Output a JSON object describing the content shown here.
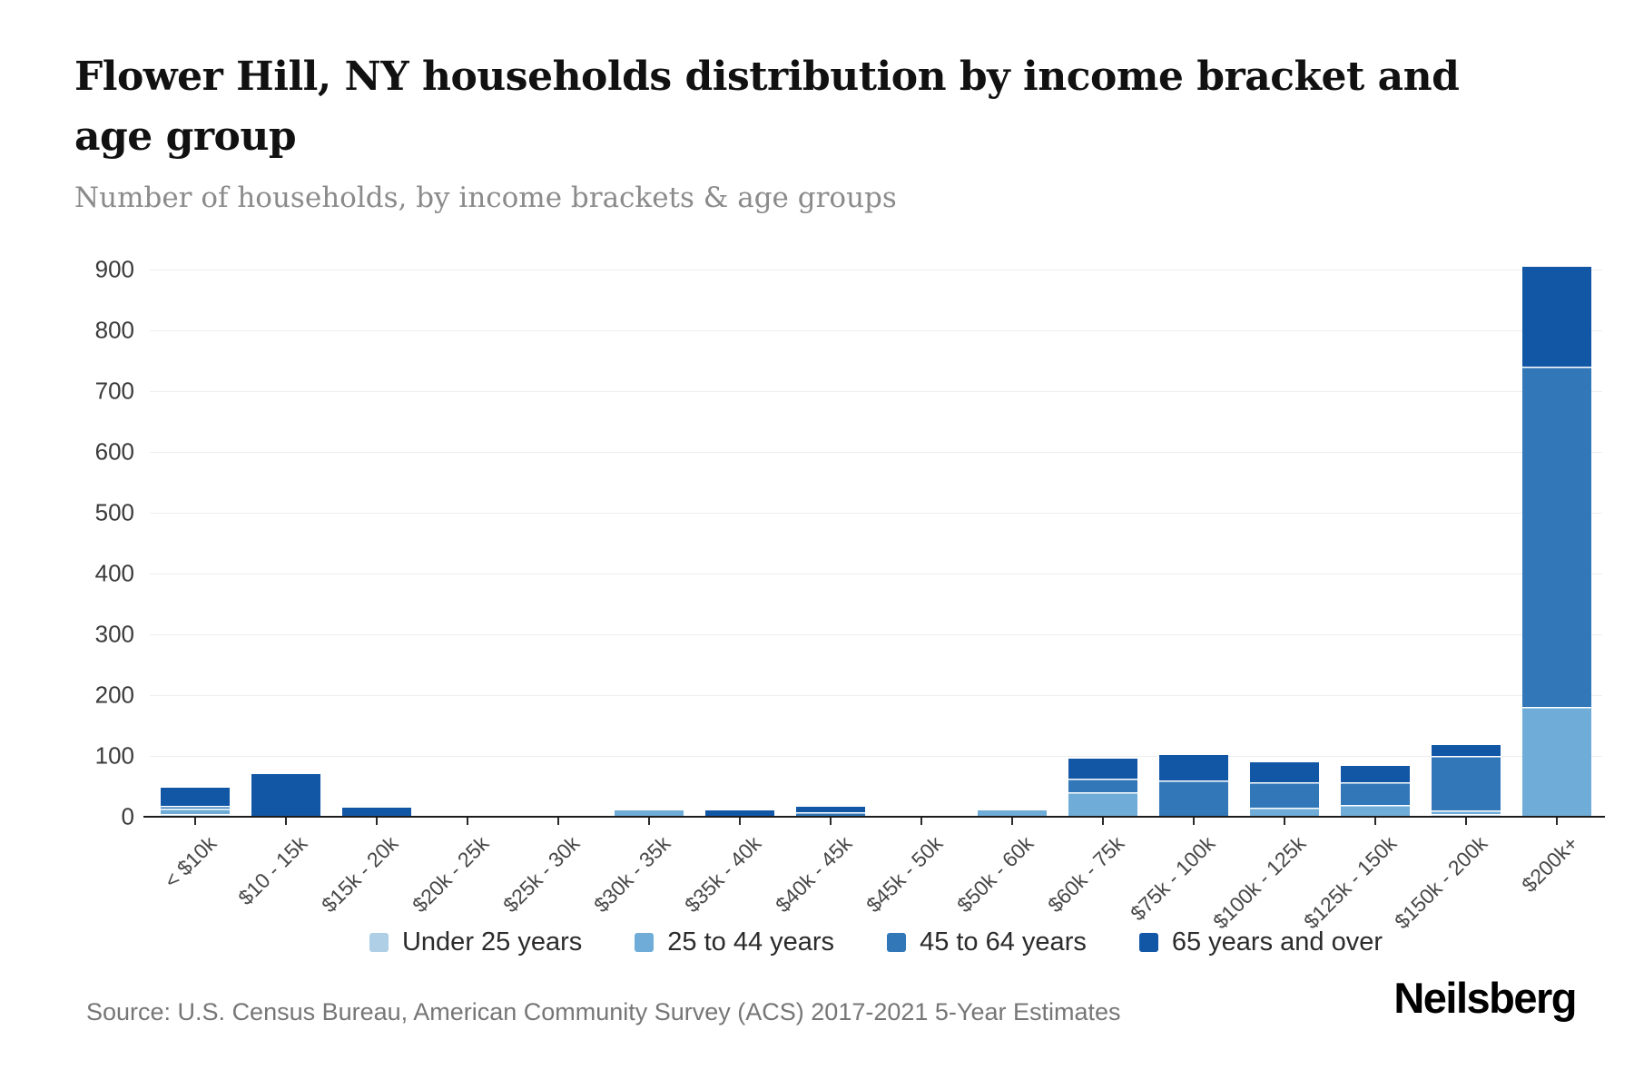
{
  "page": {
    "title": "Flower Hill, NY households distribution by income bracket and age group",
    "subtitle": "Number of households, by income brackets & age groups",
    "source": "Source: U.S. Census Bureau, American Community Survey (ACS) 2017-2021 5-Year Estimates",
    "brand": "Neilsberg"
  },
  "chart_data": {
    "type": "bar",
    "stacked": true,
    "title": "Flower Hill, NY households distribution by income bracket and age group",
    "subtitle": "Number of households, by income brackets & age groups",
    "xlabel": "",
    "ylabel": "Number of households",
    "ylim": [
      0,
      900
    ],
    "ytick_step": 100,
    "grid": "horizontal",
    "legend_position": "bottom",
    "categories": [
      "< $10k",
      "$10 - 15k",
      "$15k - 20k",
      "$20k - 25k",
      "$25k - 30k",
      "$30k - 35k",
      "$35k - 40k",
      "$40k - 45k",
      "$45k - 50k",
      "$50k - 60k",
      "$60k - 75k",
      "$75k - 100k",
      "$100k - 125k",
      "$125k - 150k",
      "$150k - 200k",
      "$200k+"
    ],
    "series": [
      {
        "name": "Under 25 years",
        "color": "#aecfe6",
        "values": [
          4,
          0,
          0,
          0,
          0,
          0,
          0,
          0,
          0,
          0,
          0,
          0,
          0,
          0,
          4,
          0
        ]
      },
      {
        "name": "25 to 44 years",
        "color": "#6fadd8",
        "values": [
          9,
          0,
          0,
          0,
          0,
          10,
          0,
          0,
          0,
          10,
          40,
          0,
          15,
          20,
          6,
          180
        ]
      },
      {
        "name": "45 to 64 years",
        "color": "#3277b8",
        "values": [
          5,
          0,
          0,
          0,
          0,
          0,
          0,
          8,
          0,
          0,
          23,
          60,
          42,
          37,
          90,
          560
        ]
      },
      {
        "name": "65 years and over",
        "color": "#1257a6",
        "values": [
          30,
          70,
          15,
          0,
          0,
          0,
          10,
          8,
          0,
          0,
          32,
          42,
          33,
          27,
          18,
          165
        ]
      }
    ],
    "totals": [
      48,
      70,
      15,
      0,
      0,
      10,
      10,
      16,
      0,
      10,
      95,
      102,
      90,
      84,
      118,
      905
    ]
  }
}
